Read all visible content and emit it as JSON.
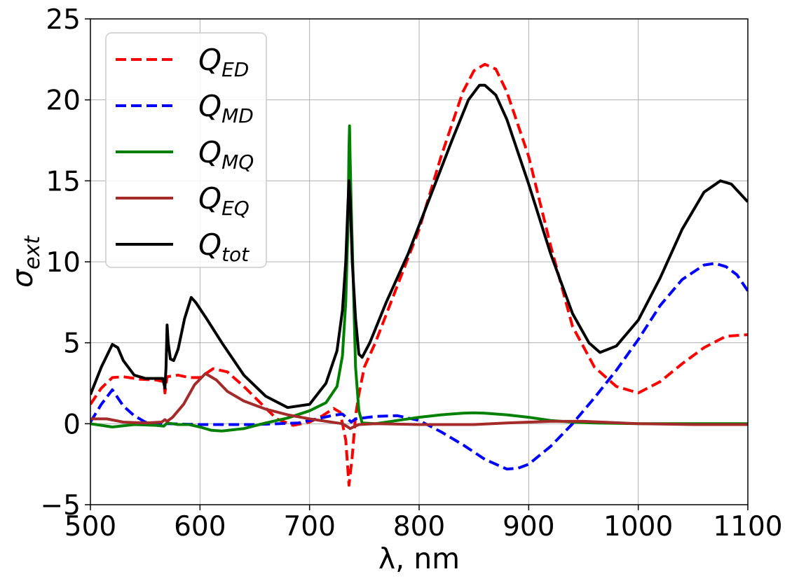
{
  "chart_data": {
    "type": "line",
    "xlabel": "λ, nm",
    "ylabel_symbol": "σ",
    "ylabel_subscript": "ext",
    "xlim": [
      500,
      1100
    ],
    "ylim": [
      -5,
      25
    ],
    "x_ticks": [
      500,
      600,
      700,
      800,
      900,
      1000,
      1100
    ],
    "x_tick_labels": [
      "500",
      "600",
      "700",
      "800",
      "900",
      "1000",
      "1100"
    ],
    "y_ticks": [
      -5,
      0,
      5,
      10,
      15,
      20,
      25
    ],
    "y_tick_labels": [
      "−5",
      "0",
      "5",
      "10",
      "15",
      "20",
      "25"
    ],
    "grid": true,
    "legend_position": "top-left",
    "series": [
      {
        "name": "Q_ED",
        "label_main": "Q",
        "label_sub": "ED",
        "color": "#ff0000",
        "dashed": true,
        "points": [
          [
            500,
            1.2
          ],
          [
            510,
            2.2
          ],
          [
            520,
            2.85
          ],
          [
            530,
            2.9
          ],
          [
            545,
            2.75
          ],
          [
            560,
            2.7
          ],
          [
            567,
            2.6
          ],
          [
            568,
            1.9
          ],
          [
            570,
            2.9
          ],
          [
            580,
            3.0
          ],
          [
            590,
            2.85
          ],
          [
            600,
            2.85
          ],
          [
            612,
            3.4
          ],
          [
            625,
            3.2
          ],
          [
            640,
            2.3
          ],
          [
            655,
            1.3
          ],
          [
            670,
            0.3
          ],
          [
            685,
            -0.1
          ],
          [
            700,
            0.1
          ],
          [
            712,
            0.5
          ],
          [
            722,
            0.95
          ],
          [
            728,
            0.7
          ],
          [
            733,
            -1.0
          ],
          [
            736,
            -3.8
          ],
          [
            739,
            -2.0
          ],
          [
            742,
            0.5
          ],
          [
            745,
            1.8
          ],
          [
            750,
            3.5
          ],
          [
            760,
            5.0
          ],
          [
            780,
            8.5
          ],
          [
            800,
            12.0
          ],
          [
            820,
            16.5
          ],
          [
            840,
            20.5
          ],
          [
            850,
            21.8
          ],
          [
            860,
            22.2
          ],
          [
            870,
            21.9
          ],
          [
            880,
            20.5
          ],
          [
            900,
            16.5
          ],
          [
            920,
            11.0
          ],
          [
            940,
            6.0
          ],
          [
            960,
            3.5
          ],
          [
            980,
            2.3
          ],
          [
            1000,
            1.9
          ],
          [
            1020,
            2.6
          ],
          [
            1040,
            3.7
          ],
          [
            1060,
            4.7
          ],
          [
            1080,
            5.4
          ],
          [
            1100,
            5.5
          ]
        ]
      },
      {
        "name": "Q_MD",
        "label_main": "Q",
        "label_sub": "MD",
        "color": "#0000ff",
        "dashed": true,
        "points": [
          [
            500,
            0.1
          ],
          [
            510,
            1.2
          ],
          [
            520,
            2.1
          ],
          [
            530,
            1.1
          ],
          [
            540,
            0.5
          ],
          [
            550,
            0.1
          ],
          [
            560,
            0.0
          ],
          [
            570,
            0.0
          ],
          [
            600,
            -0.05
          ],
          [
            650,
            -0.05
          ],
          [
            690,
            0.05
          ],
          [
            720,
            0.5
          ],
          [
            730,
            0.6
          ],
          [
            735,
            0.3
          ],
          [
            738,
            0.1
          ],
          [
            742,
            0.3
          ],
          [
            760,
            0.45
          ],
          [
            780,
            0.5
          ],
          [
            800,
            0.2
          ],
          [
            820,
            -0.5
          ],
          [
            840,
            -1.3
          ],
          [
            860,
            -2.2
          ],
          [
            880,
            -2.8
          ],
          [
            890,
            -2.75
          ],
          [
            900,
            -2.5
          ],
          [
            920,
            -1.4
          ],
          [
            940,
            0.0
          ],
          [
            960,
            1.6
          ],
          [
            980,
            3.3
          ],
          [
            1000,
            5.2
          ],
          [
            1020,
            7.3
          ],
          [
            1040,
            8.9
          ],
          [
            1060,
            9.8
          ],
          [
            1070,
            9.9
          ],
          [
            1080,
            9.7
          ],
          [
            1090,
            9.2
          ],
          [
            1100,
            8.2
          ]
        ]
      },
      {
        "name": "Q_MQ",
        "label_main": "Q",
        "label_sub": "MQ",
        "color": "#008000",
        "dashed": false,
        "points": [
          [
            500,
            0.0
          ],
          [
            510,
            -0.1
          ],
          [
            520,
            -0.2
          ],
          [
            540,
            -0.05
          ],
          [
            560,
            -0.1
          ],
          [
            567,
            -0.15
          ],
          [
            570,
            0.05
          ],
          [
            580,
            -0.05
          ],
          [
            590,
            -0.05
          ],
          [
            600,
            -0.2
          ],
          [
            610,
            -0.4
          ],
          [
            620,
            -0.45
          ],
          [
            640,
            -0.3
          ],
          [
            660,
            0.05
          ],
          [
            680,
            0.35
          ],
          [
            700,
            0.8
          ],
          [
            715,
            1.3
          ],
          [
            725,
            2.3
          ],
          [
            730,
            4.2
          ],
          [
            733,
            7.5
          ],
          [
            735,
            12.0
          ],
          [
            736,
            17.0
          ],
          [
            736.5,
            18.4
          ],
          [
            737,
            16.5
          ],
          [
            738,
            13.5
          ],
          [
            740,
            8.5
          ],
          [
            742,
            3.5
          ],
          [
            745,
            0.8
          ],
          [
            748,
            0.05
          ],
          [
            760,
            0.0
          ],
          [
            780,
            0.2
          ],
          [
            800,
            0.4
          ],
          [
            820,
            0.55
          ],
          [
            840,
            0.65
          ],
          [
            850,
            0.67
          ],
          [
            860,
            0.65
          ],
          [
            880,
            0.55
          ],
          [
            900,
            0.4
          ],
          [
            920,
            0.2
          ],
          [
            940,
            0.1
          ],
          [
            960,
            0.05
          ],
          [
            1000,
            0.0
          ],
          [
            1100,
            0.0
          ]
        ]
      },
      {
        "name": "Q_EQ",
        "label_main": "Q",
        "label_sub": "EQ",
        "color": "#a52a2a",
        "dashed": false,
        "points": [
          [
            500,
            0.3
          ],
          [
            515,
            0.3
          ],
          [
            530,
            0.1
          ],
          [
            550,
            0.05
          ],
          [
            565,
            0.1
          ],
          [
            568,
            0.25
          ],
          [
            570,
            0.15
          ],
          [
            575,
            0.4
          ],
          [
            585,
            1.2
          ],
          [
            595,
            2.4
          ],
          [
            605,
            3.1
          ],
          [
            615,
            2.7
          ],
          [
            625,
            2.0
          ],
          [
            640,
            1.4
          ],
          [
            660,
            0.9
          ],
          [
            680,
            0.55
          ],
          [
            700,
            0.3
          ],
          [
            720,
            0.1
          ],
          [
            730,
            0.0
          ],
          [
            735,
            -0.2
          ],
          [
            737,
            -0.3
          ],
          [
            740,
            -0.2
          ],
          [
            745,
            -0.05
          ],
          [
            760,
            0.0
          ],
          [
            800,
            -0.05
          ],
          [
            850,
            -0.05
          ],
          [
            880,
            0.05
          ],
          [
            900,
            0.1
          ],
          [
            920,
            0.15
          ],
          [
            950,
            0.15
          ],
          [
            1000,
            0.0
          ],
          [
            1050,
            -0.05
          ],
          [
            1100,
            -0.05
          ]
        ]
      },
      {
        "name": "Q_tot",
        "label_main": "Q",
        "label_sub": "tot",
        "color": "#000000",
        "dashed": false,
        "points": [
          [
            500,
            1.8
          ],
          [
            510,
            3.5
          ],
          [
            520,
            4.9
          ],
          [
            525,
            4.7
          ],
          [
            530,
            3.9
          ],
          [
            540,
            3.0
          ],
          [
            550,
            2.8
          ],
          [
            560,
            2.8
          ],
          [
            566,
            2.8
          ],
          [
            568,
            2.2
          ],
          [
            569,
            3.5
          ],
          [
            570,
            6.1
          ],
          [
            571,
            5.0
          ],
          [
            573,
            4.0
          ],
          [
            576,
            3.9
          ],
          [
            580,
            4.6
          ],
          [
            586,
            6.5
          ],
          [
            592,
            7.8
          ],
          [
            596,
            7.5
          ],
          [
            605,
            6.6
          ],
          [
            620,
            5.0
          ],
          [
            640,
            3.0
          ],
          [
            660,
            1.7
          ],
          [
            680,
            1.0
          ],
          [
            700,
            1.2
          ],
          [
            715,
            2.5
          ],
          [
            725,
            4.5
          ],
          [
            730,
            7.0
          ],
          [
            733,
            10.0
          ],
          [
            735,
            13.5
          ],
          [
            736,
            15.0
          ],
          [
            737,
            14.0
          ],
          [
            739,
            10.0
          ],
          [
            742,
            6.5
          ],
          [
            745,
            4.3
          ],
          [
            748,
            4.1
          ],
          [
            755,
            5.0
          ],
          [
            770,
            7.5
          ],
          [
            790,
            10.5
          ],
          [
            810,
            14.0
          ],
          [
            830,
            17.5
          ],
          [
            845,
            20.0
          ],
          [
            855,
            20.9
          ],
          [
            860,
            20.9
          ],
          [
            870,
            20.3
          ],
          [
            880,
            18.8
          ],
          [
            900,
            14.8
          ],
          [
            920,
            10.5
          ],
          [
            940,
            6.8
          ],
          [
            955,
            5.0
          ],
          [
            965,
            4.4
          ],
          [
            980,
            4.8
          ],
          [
            1000,
            6.4
          ],
          [
            1020,
            9.0
          ],
          [
            1040,
            12.0
          ],
          [
            1060,
            14.3
          ],
          [
            1075,
            15.0
          ],
          [
            1085,
            14.8
          ],
          [
            1100,
            13.7
          ]
        ]
      }
    ]
  }
}
